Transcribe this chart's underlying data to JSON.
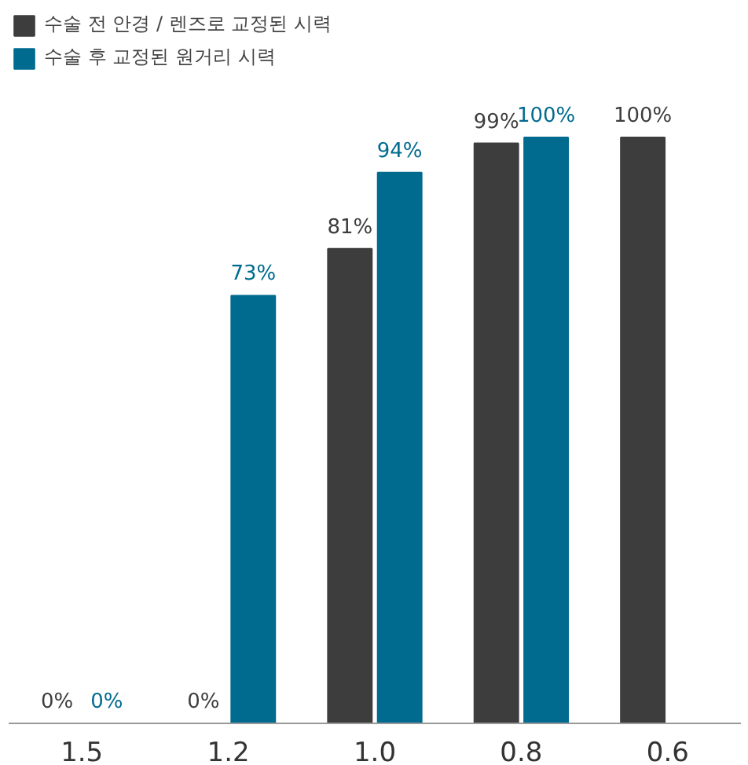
{
  "chart_data": {
    "type": "bar",
    "categories": [
      "1.5",
      "1.2",
      "1.0",
      "0.8",
      "0.6"
    ],
    "legend": "top left",
    "grid": false,
    "series": [
      {
        "name": "수술 전 안경 / 렌즈로 교정된 시력",
        "color": "#3d3d3d",
        "values": [
          0,
          0,
          81,
          99,
          100
        ],
        "value_labels": [
          "0%",
          "0%",
          "81%",
          "99%",
          "100%"
        ]
      },
      {
        "name": "수술 후 교정된 원거리 시력",
        "color": "#006b8f",
        "values": [
          0,
          73,
          94,
          100,
          null
        ],
        "value_labels": [
          "0%",
          "73%",
          "94%",
          "100%",
          null
        ]
      }
    ]
  }
}
